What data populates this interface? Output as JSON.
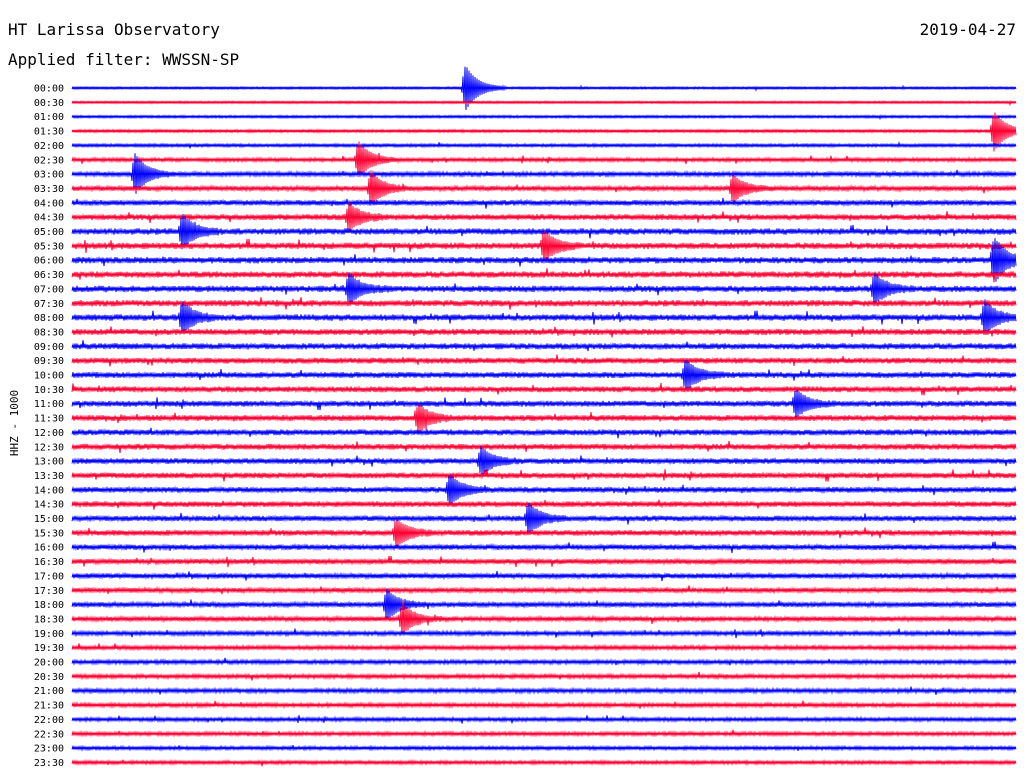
{
  "header": {
    "station": "HT Larissa Observatory",
    "filter": "Applied filter: WWSSN-SP",
    "date": "2019-04-27"
  },
  "colors": {
    "trace_a": "#0000ff",
    "trace_b": "#ff0033",
    "background": "#ffffff"
  },
  "chart_data": {
    "type": "line",
    "title": "HT Larissa Observatory",
    "subtitle": "Applied filter: WWSSN-SP",
    "ylabel": "HHZ - 1000",
    "xlabel": "",
    "rows": [
      "00:00",
      "00:30",
      "01:00",
      "01:30",
      "02:00",
      "02:30",
      "03:00",
      "03:30",
      "04:00",
      "04:30",
      "05:00",
      "05:30",
      "06:00",
      "06:30",
      "07:00",
      "07:30",
      "08:00",
      "08:30",
      "09:00",
      "09:30",
      "10:00",
      "10:30",
      "11:00",
      "11:30",
      "12:00",
      "12:30",
      "13:00",
      "13:30",
      "14:00",
      "14:30",
      "15:00",
      "15:30",
      "16:00",
      "16:30",
      "17:00",
      "17:30",
      "18:00",
      "18:30",
      "19:00",
      "19:30",
      "20:00",
      "20:30",
      "21:00",
      "21:30",
      "22:00",
      "22:30",
      "23:00",
      "23:30"
    ],
    "row_colors": [
      "blue",
      "red"
    ],
    "activity_level": [
      0.2,
      0.2,
      0.25,
      0.3,
      0.35,
      0.5,
      0.6,
      0.7,
      0.8,
      0.9,
      1.0,
      1.0,
      1.0,
      1.0,
      1.0,
      1.0,
      1.0,
      0.95,
      0.95,
      0.9,
      0.9,
      0.9,
      0.9,
      0.9,
      0.9,
      0.9,
      0.85,
      0.85,
      0.85,
      0.85,
      0.85,
      0.85,
      0.8,
      0.75,
      0.75,
      0.7,
      0.7,
      0.7,
      0.6,
      0.55,
      0.55,
      0.55,
      0.6,
      0.55,
      0.5,
      0.5,
      0.45,
      0.45
    ],
    "events": [
      {
        "row": 0,
        "minute": 12.5,
        "amp": 1.4
      },
      {
        "row": 3,
        "minute": 29.3,
        "amp": 1.2
      },
      {
        "row": 5,
        "minute": 9.1,
        "amp": 1.1
      },
      {
        "row": 6,
        "minute": 2.0,
        "amp": 1.2
      },
      {
        "row": 7,
        "minute": 9.5,
        "amp": 1.0
      },
      {
        "row": 7,
        "minute": 21.0,
        "amp": 0.8
      },
      {
        "row": 9,
        "minute": 8.8,
        "amp": 0.8
      },
      {
        "row": 10,
        "minute": 3.5,
        "amp": 1.0
      },
      {
        "row": 11,
        "minute": 15.0,
        "amp": 0.9
      },
      {
        "row": 12,
        "minute": 29.3,
        "amp": 1.4
      },
      {
        "row": 14,
        "minute": 8.8,
        "amp": 0.9
      },
      {
        "row": 14,
        "minute": 25.5,
        "amp": 0.9
      },
      {
        "row": 16,
        "minute": 3.5,
        "amp": 0.9
      },
      {
        "row": 16,
        "minute": 29.0,
        "amp": 1.0
      },
      {
        "row": 20,
        "minute": 19.5,
        "amp": 0.9
      },
      {
        "row": 22,
        "minute": 23.0,
        "amp": 0.8
      },
      {
        "row": 23,
        "minute": 11.0,
        "amp": 0.8
      },
      {
        "row": 26,
        "minute": 13.0,
        "amp": 0.8
      },
      {
        "row": 28,
        "minute": 12.0,
        "amp": 0.9
      },
      {
        "row": 30,
        "minute": 14.5,
        "amp": 0.9
      },
      {
        "row": 31,
        "minute": 10.3,
        "amp": 0.8
      },
      {
        "row": 36,
        "minute": 10.0,
        "amp": 0.9
      },
      {
        "row": 37,
        "minute": 10.5,
        "amp": 0.9
      }
    ]
  }
}
